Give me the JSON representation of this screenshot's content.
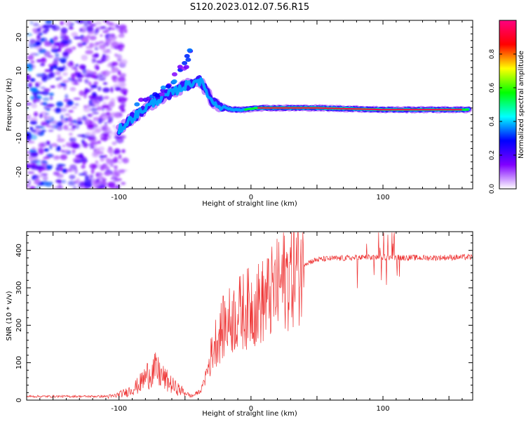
{
  "title": "S120.2023.012.07.56.R15",
  "spectrogram": {
    "type": "heatmap",
    "xlabel": "Height of straight line (km)",
    "ylabel": "Frequency (Hz)",
    "xlim": [
      -170,
      168
    ],
    "ylim": [
      -25,
      25
    ],
    "xticks": [
      -100,
      0,
      100
    ],
    "yticks": [
      -20,
      -10,
      0,
      10,
      20
    ],
    "colorbar": {
      "label": "Normalized spectral amplitude",
      "range": [
        0,
        1
      ],
      "ticks": [
        "0.0",
        "0.2",
        "0.4",
        "0.6",
        "0.8"
      ],
      "tick_values": [
        0.0,
        0.2,
        0.4,
        0.6,
        0.8
      ],
      "colors": [
        "#ffffff",
        "#8000ff",
        "#0000ff",
        "#00ffff",
        "#00ff00",
        "#ffff00",
        "#ff0000",
        "#ff0080"
      ]
    },
    "ridge": [
      {
        "x": -100,
        "y": -7.5
      },
      {
        "x": -90,
        "y": -4
      },
      {
        "x": -80,
        "y": -1
      },
      {
        "x": -70,
        "y": 1.5
      },
      {
        "x": -60,
        "y": 3.5
      },
      {
        "x": -50,
        "y": 5.5
      },
      {
        "x": -40,
        "y": 7.5
      },
      {
        "x": -35,
        "y": 5
      },
      {
        "x": -30,
        "y": 1
      },
      {
        "x": -25,
        "y": 0
      },
      {
        "x": -15,
        "y": -1.5
      },
      {
        "x": -5,
        "y": -1.5
      },
      {
        "x": 5,
        "y": -1
      },
      {
        "x": 50,
        "y": -1
      },
      {
        "x": 100,
        "y": -1.5
      },
      {
        "x": 165,
        "y": -1.5
      }
    ],
    "upper_branch": [
      {
        "x": -85,
        "y": 0
      },
      {
        "x": -70,
        "y": 3
      },
      {
        "x": -60,
        "y": 7
      },
      {
        "x": -50,
        "y": 12
      },
      {
        "x": -45,
        "y": 17
      }
    ]
  },
  "snr": {
    "type": "line",
    "xlabel": "Height of straight line (km)",
    "ylabel": "SNR (10 * v/v)",
    "xlim": [
      -170,
      168
    ],
    "ylim": [
      0,
      450
    ],
    "xticks": [
      -100,
      0,
      100
    ],
    "yticks": [
      0,
      100,
      200,
      300,
      400
    ],
    "color": "#ee3333",
    "envelope": [
      {
        "x": -170,
        "y": 10
      },
      {
        "x": -105,
        "y": 10
      },
      {
        "x": -95,
        "y": 20
      },
      {
        "x": -85,
        "y": 40
      },
      {
        "x": -78,
        "y": 70
      },
      {
        "x": -72,
        "y": 80
      },
      {
        "x": -65,
        "y": 55
      },
      {
        "x": -58,
        "y": 35
      },
      {
        "x": -50,
        "y": 20
      },
      {
        "x": -45,
        "y": 10
      },
      {
        "x": -38,
        "y": 25
      },
      {
        "x": -33,
        "y": 80
      },
      {
        "x": -28,
        "y": 150
      },
      {
        "x": -20,
        "y": 200
      },
      {
        "x": -10,
        "y": 230
      },
      {
        "x": 0,
        "y": 250
      },
      {
        "x": 10,
        "y": 265
      },
      {
        "x": 20,
        "y": 300
      },
      {
        "x": 30,
        "y": 340
      },
      {
        "x": 40,
        "y": 365
      },
      {
        "x": 50,
        "y": 375
      },
      {
        "x": 60,
        "y": 378
      },
      {
        "x": 80,
        "y": 380
      },
      {
        "x": 100,
        "y": 382
      },
      {
        "x": 130,
        "y": 380
      },
      {
        "x": 168,
        "y": 382
      }
    ]
  }
}
